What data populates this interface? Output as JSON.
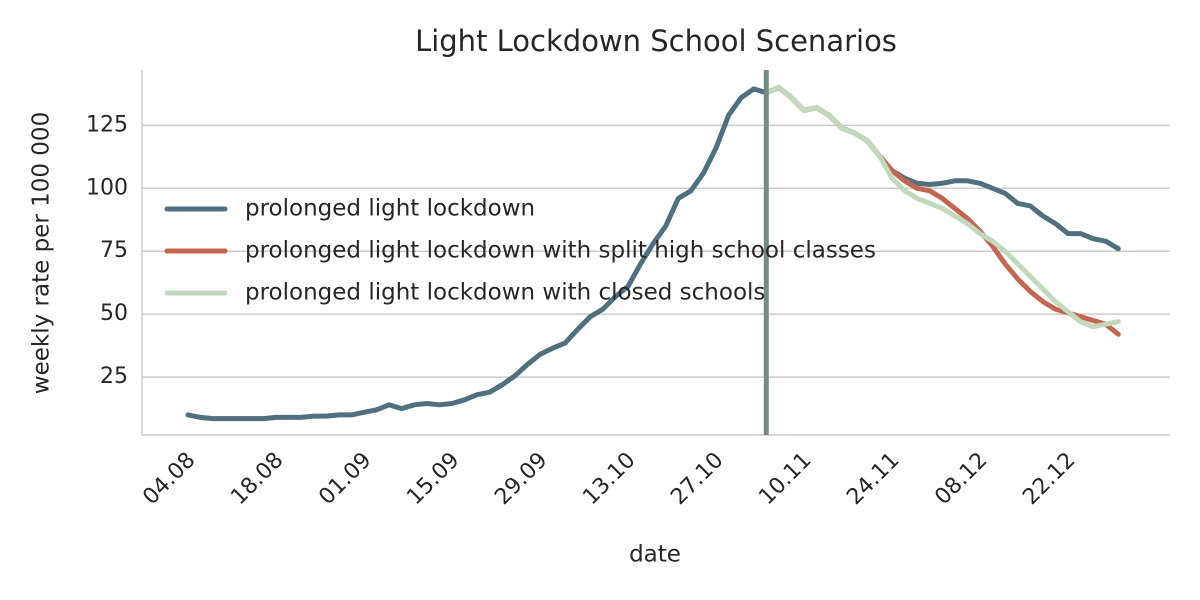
{
  "chart_data": {
    "type": "line",
    "title": "Light Lockdown School Scenarios",
    "x_label": "date",
    "y_label": "weekly rate per 100 000",
    "x": [
      "04.08",
      "06.08",
      "08.08",
      "10.08",
      "12.08",
      "14.08",
      "16.08",
      "18.08",
      "20.08",
      "22.08",
      "24.08",
      "26.08",
      "28.08",
      "30.08",
      "01.09",
      "03.09",
      "05.09",
      "07.09",
      "09.09",
      "11.09",
      "13.09",
      "15.09",
      "17.09",
      "19.09",
      "21.09",
      "23.09",
      "25.09",
      "27.09",
      "29.09",
      "01.10",
      "03.10",
      "05.10",
      "07.10",
      "09.10",
      "11.10",
      "13.10",
      "15.10",
      "17.10",
      "19.10",
      "21.10",
      "23.10",
      "25.10",
      "27.10",
      "29.10",
      "31.10",
      "02.11",
      "04.11",
      "06.11",
      "08.11",
      "10.11",
      "12.11",
      "14.11",
      "16.11",
      "18.11",
      "20.11",
      "22.11",
      "24.11",
      "26.11",
      "28.11",
      "30.11",
      "02.12",
      "04.12",
      "06.12",
      "08.12",
      "10.12",
      "12.12",
      "14.12",
      "16.12",
      "18.12",
      "20.12",
      "22.12",
      "24.12",
      "26.12",
      "28.12",
      "30.12"
    ],
    "xticks": [
      "04.08",
      "18.08",
      "01.09",
      "15.09",
      "29.09",
      "13.10",
      "27.10",
      "10.11",
      "24.11",
      "08.12",
      "22.12"
    ],
    "vline": "04.11",
    "vline_color": "#758c86",
    "series": [
      {
        "name": "prolonged light lockdown",
        "color": "#50707f",
        "values": [
          10,
          9,
          8.5,
          8.5,
          8.5,
          8.5,
          8.5,
          9,
          9,
          9,
          9.5,
          9.5,
          10,
          10,
          11,
          12,
          14,
          12.5,
          14,
          14.5,
          14,
          14.5,
          16,
          18,
          19,
          22,
          25.5,
          30,
          34,
          36.5,
          38.5,
          44,
          49,
          52,
          57,
          61,
          70,
          78,
          85,
          96,
          99,
          106,
          116,
          129,
          136,
          139.5,
          138,
          140,
          136,
          131,
          132,
          129,
          124,
          122,
          119,
          113,
          107,
          104,
          102,
          101.5,
          102,
          103,
          103,
          102,
          100,
          98,
          94,
          93,
          89,
          86,
          82,
          82,
          80,
          79,
          76
        ]
      },
      {
        "name": "prolonged light lockdown with split high school classes",
        "color": "#c4664f",
        "values": [
          null,
          null,
          null,
          null,
          null,
          null,
          null,
          null,
          null,
          null,
          null,
          null,
          null,
          null,
          null,
          null,
          null,
          null,
          null,
          null,
          null,
          null,
          null,
          null,
          null,
          null,
          null,
          null,
          null,
          null,
          null,
          null,
          null,
          null,
          null,
          null,
          null,
          null,
          null,
          null,
          null,
          null,
          null,
          null,
          null,
          null,
          138,
          140,
          136,
          131,
          132,
          129,
          124,
          122,
          119,
          113,
          107,
          103,
          100,
          99,
          96,
          92,
          88,
          83,
          77,
          70,
          64,
          59,
          55,
          52,
          50.5,
          49,
          47.5,
          46,
          42
        ]
      },
      {
        "name": "prolonged light lockdown with closed schools",
        "color": "#c2d8bc",
        "values": [
          null,
          null,
          null,
          null,
          null,
          null,
          null,
          null,
          null,
          null,
          null,
          null,
          null,
          null,
          null,
          null,
          null,
          null,
          null,
          null,
          null,
          null,
          null,
          null,
          null,
          null,
          null,
          null,
          null,
          null,
          null,
          null,
          null,
          null,
          null,
          null,
          null,
          null,
          null,
          null,
          null,
          null,
          null,
          null,
          null,
          null,
          138,
          140,
          136,
          131,
          132,
          129,
          124,
          122,
          119,
          113,
          104,
          99,
          96,
          94,
          92,
          89,
          86,
          82,
          79,
          75,
          70,
          65,
          60,
          55,
          51,
          47,
          45,
          46,
          47
        ]
      }
    ],
    "ylim": [
      2,
      147
    ],
    "yticks": [
      25,
      50,
      75,
      100,
      125
    ],
    "grid": true,
    "legend": "upper left"
  }
}
